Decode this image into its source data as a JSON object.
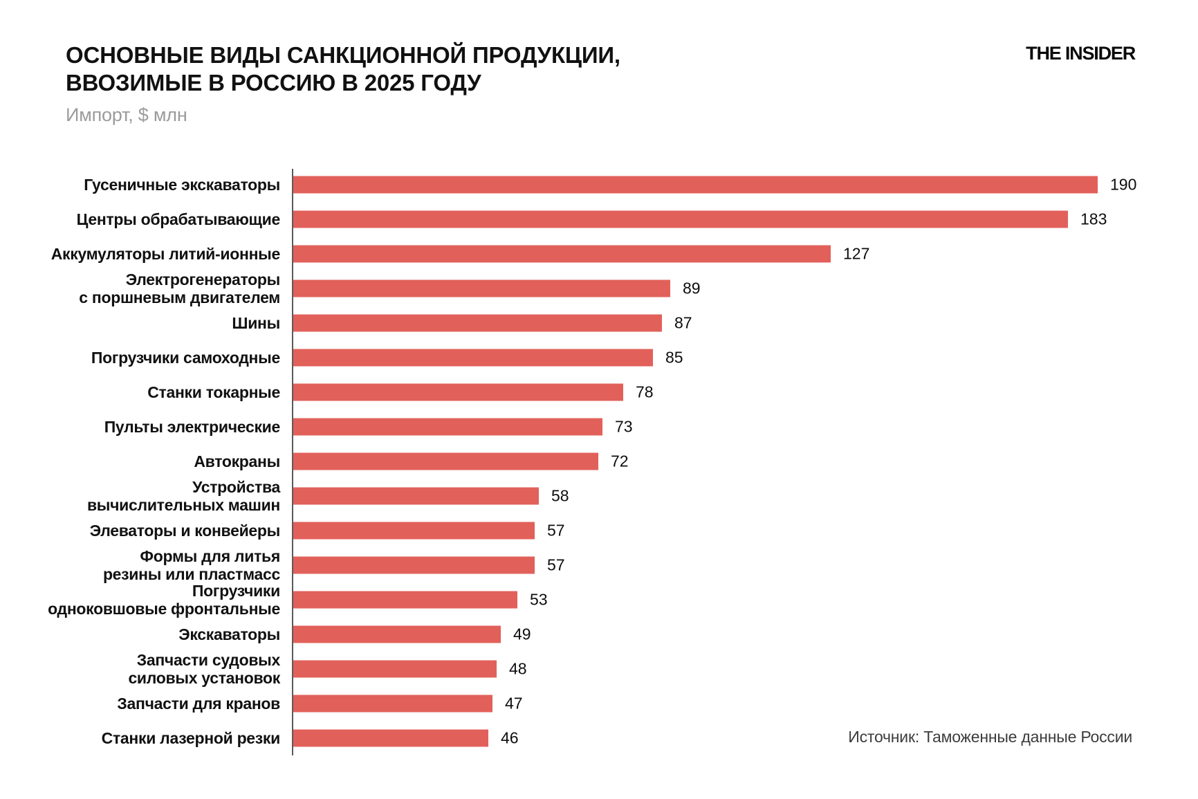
{
  "header": {
    "title_lines": [
      "ОСНОВНЫЕ ВИДЫ САНКЦИОННОЙ ПРОДУКЦИИ,",
      "ВВОЗИМЫЕ В РОССИЮ В 2025 ГОДУ"
    ],
    "subtitle": "Импорт, $ млн",
    "logo": "THE INSIDER"
  },
  "footer": {
    "source": "Источник: Таможенные данные России"
  },
  "chart_data": {
    "type": "bar",
    "orientation": "horizontal",
    "title": "ОСНОВНЫЕ ВИДЫ САНКЦИОННОЙ ПРОДУКЦИИ, ВВОЗИМЫЕ В РОССИЮ В 2025 ГОДУ",
    "units_label": "Импорт, $ млн",
    "categories": [
      "Гусеничные экскаваторы",
      "Центры обрабатывающие",
      "Аккумуляторы литий-ионные",
      "Электрогенераторы\nс поршневым двигателем",
      "Шины",
      "Погрузчики самоходные",
      "Станки токарные",
      "Пульты электрические",
      "Автокраны",
      "Устройства\nвычислительных машин",
      "Элеваторы и конвейеры",
      "Формы для литья\nрезины или пластмасс",
      "Погрузчики\nодноковшовые фронтальные",
      "Экскаваторы",
      "Запчасти судовых\nсиловых установок",
      "Запчасти для кранов",
      "Станки лазерной резки"
    ],
    "values": [
      190,
      183,
      127,
      89,
      87,
      85,
      78,
      73,
      72,
      58,
      57,
      57,
      53,
      49,
      48,
      47,
      46
    ],
    "xlim": [
      0,
      190
    ],
    "grid": false,
    "value_labels": "end-of-bar",
    "bar_color": "#E2605A",
    "axis_color": "#595959",
    "source": "Источник: Таможенные данные России"
  }
}
